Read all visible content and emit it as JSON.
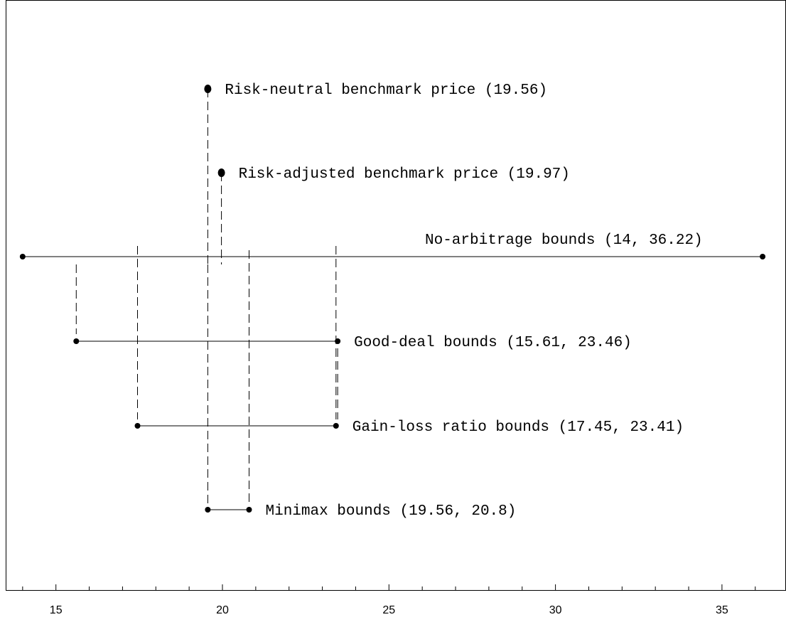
{
  "chart_data": {
    "type": "interval",
    "xlim": [
      13.7,
      36.7
    ],
    "x_ticks": [
      15,
      20,
      25,
      30,
      35
    ],
    "minor_tick_step": 1,
    "grid": false,
    "legend": "none",
    "points": [
      {
        "label": "Risk-neutral benchmark price",
        "value_text": "(19.56)",
        "x": 19.56
      },
      {
        "label": "Risk-adjusted benchmark price",
        "value_text": "(19.97)",
        "x": 19.97
      }
    ],
    "intervals": [
      {
        "label": "No-arbitrage bounds",
        "value_text": "(14, 36.22)",
        "low": 14,
        "high": 36.22
      },
      {
        "label": "Good-deal bounds",
        "value_text": "(15.61, 23.46)",
        "low": 15.61,
        "high": 23.46
      },
      {
        "label": "Gain-loss ratio bounds",
        "value_text": "(17.45, 23.41)",
        "low": 17.45,
        "high": 23.41
      },
      {
        "label": "Minimax bounds",
        "value_text": "(19.56, 20.8)",
        "low": 19.56,
        "high": 20.8
      }
    ]
  }
}
